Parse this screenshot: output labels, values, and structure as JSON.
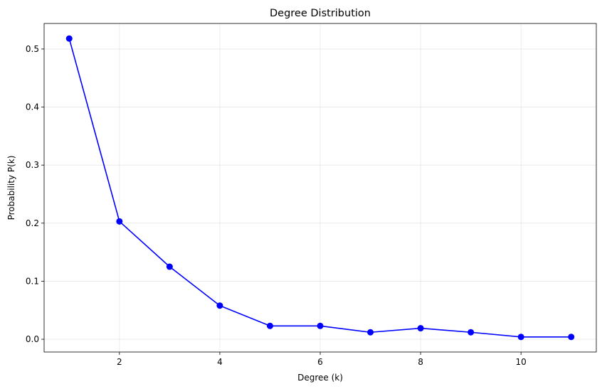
{
  "chart_data": {
    "type": "line",
    "title": "Degree Distribution",
    "xlabel": "Degree (k)",
    "ylabel": "Probability P(k)",
    "x": [
      1,
      2,
      3,
      4,
      5,
      6,
      7,
      8,
      9,
      10,
      11
    ],
    "series": [
      {
        "values": [
          0.518,
          0.203,
          0.125,
          0.058,
          0.023,
          0.023,
          0.012,
          0.019,
          0.012,
          0.004,
          0.004
        ],
        "color": "#0000ff",
        "marker": "circle"
      }
    ],
    "xlim": [
      0.5,
      11.5
    ],
    "ylim": [
      -0.022,
      0.544
    ],
    "xticks": [
      2,
      4,
      6,
      8,
      10
    ],
    "xtick_labels": [
      "2",
      "4",
      "6",
      "8",
      "10"
    ],
    "yticks": [
      0.0,
      0.1,
      0.2,
      0.3,
      0.4,
      0.5
    ],
    "ytick_labels": [
      "0.0",
      "0.1",
      "0.2",
      "0.3",
      "0.4",
      "0.5"
    ],
    "grid": true
  }
}
